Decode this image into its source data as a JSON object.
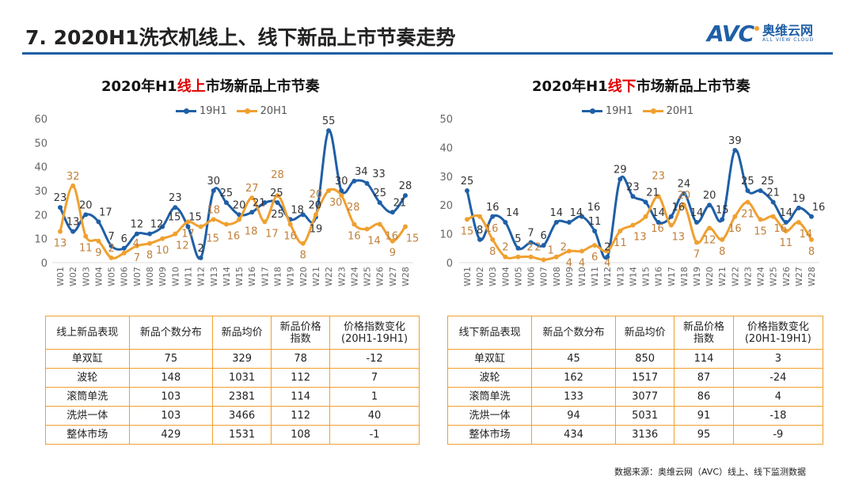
{
  "header": {
    "title": "7. 2020H1洗衣机线上、线下新品上市节奏走势",
    "logo_avc": "AVC",
    "logo_cn": "奥维云网",
    "logo_en": "ALL VIEW CLOUD"
  },
  "colors": {
    "s19": "#1f5fa6",
    "s20": "#f0a030",
    "accent": "#e00000"
  },
  "chart_data": [
    {
      "type": "line",
      "title_pre": "2020年H1",
      "title_red": "线上",
      "title_post": "市场新品上市节奏",
      "ylim": [
        0,
        60
      ],
      "yticks": [
        0,
        10,
        20,
        30,
        40,
        50,
        60
      ],
      "legend": "top",
      "categories": [
        "W01",
        "W02",
        "W03",
        "W04",
        "W05",
        "W06",
        "W07",
        "W08",
        "W09",
        "W10",
        "W11",
        "W12",
        "W13",
        "W14",
        "W15",
        "W16",
        "W17",
        "W18",
        "W19",
        "W20",
        "W21",
        "W22",
        "W23",
        "W24",
        "W25",
        "W26",
        "W27",
        "W28"
      ],
      "series": [
        {
          "name": "19H1",
          "values": [
            23,
            13,
            20,
            17,
            7,
            6,
            12,
            12,
            15,
            23,
            15,
            2,
            30,
            25,
            20,
            21,
            25,
            25,
            18,
            20,
            19,
            55,
            30,
            34,
            33,
            25,
            21,
            28
          ]
        },
        {
          "name": "20H1",
          "values": [
            13,
            32,
            11,
            9,
            2,
            4,
            7,
            8,
            10,
            12,
            17,
            15,
            18,
            16,
            18,
            27,
            17,
            28,
            16,
            8,
            20,
            30,
            28,
            16,
            14,
            16,
            9,
            15
          ]
        }
      ]
    },
    {
      "type": "line",
      "title_pre": "2020年H1",
      "title_red": "线下",
      "title_post": "市场新品上市节奏",
      "ylim": [
        0,
        50
      ],
      "yticks": [
        0,
        10,
        20,
        30,
        40,
        50
      ],
      "legend": "top",
      "categories": [
        "W01",
        "W02",
        "W03",
        "W04",
        "W05",
        "W06",
        "W07",
        "W08",
        "W09",
        "W10",
        "W11",
        "W12",
        "W13",
        "W14",
        "W15",
        "W16",
        "W17",
        "W18",
        "W19",
        "W20",
        "W21",
        "W22",
        "W23",
        "W24",
        "W25",
        "W26",
        "W27",
        "W28"
      ],
      "series": [
        {
          "name": "19H1",
          "values": [
            25,
            8,
            16,
            14,
            5,
            7,
            6,
            14,
            14,
            16,
            11,
            2,
            29,
            23,
            21,
            14,
            16,
            24,
            14,
            20,
            15,
            39,
            25,
            25,
            21,
            14,
            19,
            16
          ]
        },
        {
          "name": "20H1",
          "values": [
            15,
            16,
            8,
            2,
            2,
            2,
            1,
            2,
            4,
            4,
            6,
            4,
            11,
            13,
            16,
            23,
            13,
            20,
            7,
            12,
            8,
            16,
            21,
            15,
            16,
            11,
            14,
            8
          ]
        }
      ]
    }
  ],
  "tables": [
    {
      "header": [
        "线上新品表现",
        "新品个数分布",
        "新品均价",
        "新品价格\n指数",
        "价格指数变化\n(20H1-19H1)"
      ],
      "rows": [
        [
          "单双缸",
          "75",
          "329",
          "78",
          "-12"
        ],
        [
          "波轮",
          "148",
          "1031",
          "112",
          "7"
        ],
        [
          "滚筒单洗",
          "103",
          "2381",
          "114",
          "1"
        ],
        [
          "洗烘一体",
          "103",
          "3466",
          "112",
          "40"
        ],
        [
          "整体市场",
          "429",
          "1531",
          "108",
          "-1"
        ]
      ]
    },
    {
      "header": [
        "线下新品表现",
        "新品个数分布",
        "新品均价",
        "新品价格\n指数",
        "价格指数变化\n(20H1-19H1)"
      ],
      "rows": [
        [
          "单双缸",
          "45",
          "850",
          "114",
          "3"
        ],
        [
          "波轮",
          "162",
          "1517",
          "87",
          "-24"
        ],
        [
          "滚筒单洗",
          "133",
          "3077",
          "86",
          "4"
        ],
        [
          "洗烘一体",
          "94",
          "5031",
          "91",
          "-18"
        ],
        [
          "整体市场",
          "434",
          "3136",
          "95",
          "-9"
        ]
      ]
    }
  ],
  "source": "数据来源：奥维云网（AVC）线上、线下监测数据"
}
